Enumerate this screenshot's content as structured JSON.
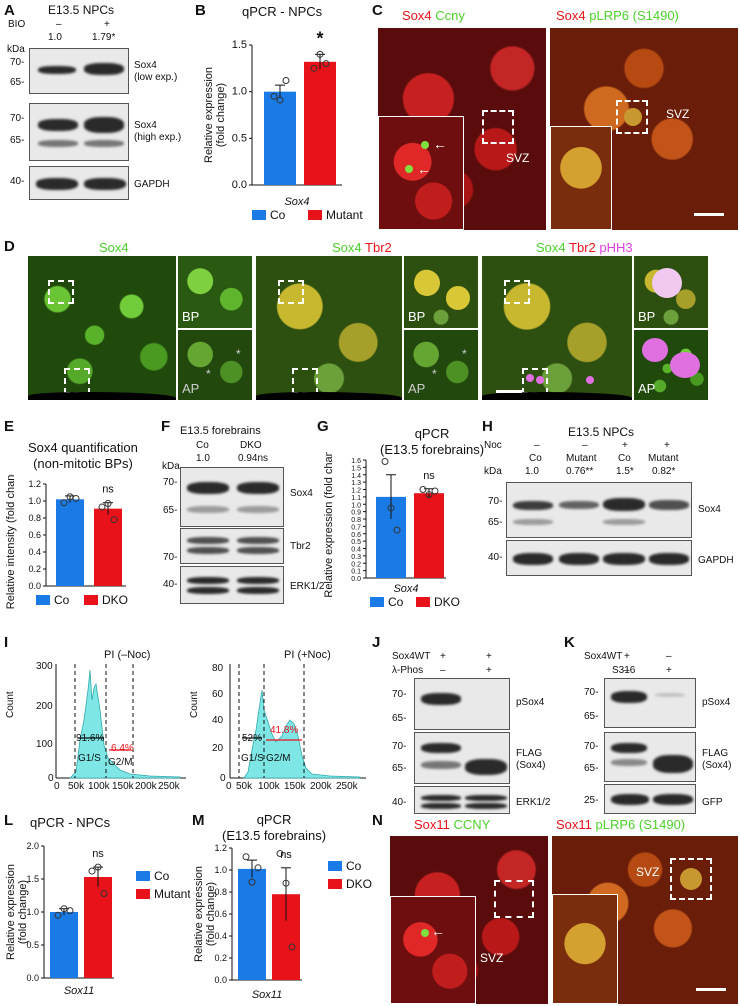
{
  "panel_letters": [
    "A",
    "B",
    "C",
    "D",
    "E",
    "F",
    "G",
    "H",
    "I",
    "J",
    "K",
    "L",
    "M",
    "N"
  ],
  "panelA": {
    "title": "E13.5 NPCs",
    "bio_label": "BIO",
    "bio_signs": [
      "–",
      "+"
    ],
    "ratios": [
      "1.0",
      "1.79*"
    ],
    "kda": "kDa",
    "markers1": [
      "70-",
      "65-"
    ],
    "markers2": [
      "70-",
      "65-"
    ],
    "marker3": "40-",
    "blot_labels": [
      "Sox4\n(low exp.)",
      "Sox4\n(high exp.)",
      "GAPDH"
    ]
  },
  "panelB": {
    "title": "qPCR - NPCs"
  },
  "panelC": {
    "left_title": [
      "Sox4",
      "Ccny"
    ],
    "right_title": [
      "Sox4",
      "pLRP6 (S1490)"
    ],
    "svz": "SVZ"
  },
  "panelD": {
    "titles": [
      [
        "Sox4"
      ],
      [
        "Sox4",
        "Tbr2"
      ],
      [
        "Sox4",
        "Tbr2",
        "pHH3"
      ]
    ],
    "bp": "BP",
    "ap": "AP",
    "star": "*"
  },
  "panelE": {
    "title": "Sox4 quantification\n(non-mitotic BPs)"
  },
  "panelF": {
    "title": "E13.5 forebrains",
    "groups": [
      "Co",
      "DKO"
    ],
    "ratios": [
      "1.0",
      "0.94ns"
    ],
    "kda": "kDa",
    "markers1": [
      "70-",
      "65-"
    ],
    "marker2": "70-",
    "marker3": "40-",
    "blot_labels": [
      "Sox4",
      "Tbr2",
      "ERK1/2"
    ]
  },
  "panelG": {
    "title": "qPCR\n(E13.5 forebrains)"
  },
  "panelH": {
    "title": "E13.5 NPCs",
    "noc": "Noc",
    "noc_signs": [
      "–",
      "–",
      "+",
      "+"
    ],
    "groups": [
      "Co",
      "Mutant",
      "Co",
      "Mutant"
    ],
    "ratios": [
      "1.0",
      "0.76**",
      "1.5*",
      "0.82*"
    ],
    "kda": "kDa",
    "markers1": [
      "70-",
      "65-"
    ],
    "marker2": "40-",
    "blot_labels": [
      "Sox4",
      "GAPDH"
    ]
  },
  "panelI": {
    "left_title": "PI (–Noc)",
    "right_title": "PI (+Noc)",
    "left_pcts": [
      "91.6%",
      "6.4%"
    ],
    "right_pcts": [
      "52%",
      "41.8%"
    ],
    "phases": [
      "G1/S",
      "G2/M"
    ],
    "xticks": [
      "0",
      "50k",
      "100k",
      "150k",
      "200k",
      "250k"
    ],
    "left_yticks": [
      "0",
      "100",
      "200",
      "300"
    ],
    "right_yticks": [
      "0",
      "20",
      "40",
      "60",
      "80"
    ],
    "ylabel": "Count"
  },
  "panelJ": {
    "rows": [
      "Sox4WT",
      "λ-Phos"
    ],
    "signs": [
      [
        "+",
        "+"
      ],
      [
        "–",
        "+"
      ]
    ],
    "markers1": [
      "70-",
      "65-"
    ],
    "markers2": [
      "70-",
      "65-"
    ],
    "marker3": "40-",
    "blot_labels": [
      "pSox4",
      "FLAG\n(Sox4)",
      "ERK1/2"
    ]
  },
  "panelK": {
    "rows": [
      "Sox4WT",
      "S316"
    ],
    "signs": [
      [
        "+",
        "–"
      ],
      [
        "–",
        "+"
      ]
    ],
    "markers1": [
      "70-",
      "65-"
    ],
    "markers2": [
      "70-",
      "65-"
    ],
    "marker3": "25-",
    "blot_labels": [
      "pSox4",
      "FLAG\n(Sox4)",
      "GFP"
    ]
  },
  "panelL": {
    "title": "qPCR - NPCs"
  },
  "panelM": {
    "title": "qPCR\n(E13.5 forebrains)"
  },
  "panelN": {
    "left_title": [
      "Sox11",
      "CCNY"
    ],
    "right_title": [
      "Sox11",
      "pLRP6 (S1490)"
    ],
    "svz": "SVZ"
  },
  "colors": {
    "blue": "#1a7be6",
    "red": "#e8131a",
    "sky": "#2ba6e8",
    "cyan": "#7fe6e6"
  },
  "chart_data": [
    {
      "id": "B",
      "type": "bar",
      "categories": [
        "Co",
        "Mutant"
      ],
      "values": [
        1.0,
        1.32
      ],
      "errors": [
        0.07,
        0.08
      ],
      "ylabel": "Relative expression\n(fold change)",
      "xlabel": "Sox4",
      "ylim": [
        0,
        1.5
      ],
      "yticks": [
        "0.0",
        "0.5",
        "1.0",
        "1.5"
      ],
      "annotations": [
        "*"
      ],
      "points": [
        [
          0.95,
          0.91,
          1.12
        ],
        [
          1.25,
          1.4,
          1.3
        ]
      ],
      "legend": [
        "Co",
        "Mutant"
      ]
    },
    {
      "id": "E",
      "type": "bar",
      "categories": [
        "Co",
        "DKO"
      ],
      "values": [
        1.02,
        0.91
      ],
      "errors": [
        0.04,
        0.07
      ],
      "ylabel": "Relative intensity (fold change)",
      "ylim": [
        0,
        1.2
      ],
      "yticks": [
        "0.0",
        "0.2",
        "0.4",
        "0.6",
        "0.8",
        "1.0",
        "1.2"
      ],
      "annotations": [
        "ns"
      ],
      "points": [
        [
          0.98,
          1.05,
          1.03
        ],
        [
          0.93,
          0.97,
          0.78
        ]
      ],
      "legend": [
        "Co",
        "DKO"
      ]
    },
    {
      "id": "G",
      "type": "bar",
      "categories": [
        "Co",
        "DKO"
      ],
      "values": [
        1.1,
        1.15
      ],
      "errors": [
        0.3,
        0.06
      ],
      "ylabel": "Relative expression (fold change)",
      "xlabel": "Sox4",
      "ylim": [
        0,
        1.6
      ],
      "yticks": [
        "0.0",
        "0.1",
        "0.2",
        "0.3",
        "0.4",
        "0.5",
        "0.6",
        "0.7",
        "0.8",
        "0.9",
        "1.0",
        "1.1",
        "1.2",
        "1.3",
        "1.4",
        "1.5",
        "1.6"
      ],
      "annotations": [
        "ns"
      ],
      "points": [
        [
          1.58,
          0.95,
          0.65
        ],
        [
          1.2,
          1.13,
          1.18
        ]
      ],
      "legend": [
        "Co",
        "DKO"
      ]
    },
    {
      "id": "L",
      "type": "bar",
      "categories": [
        "Co",
        "Mutant"
      ],
      "values": [
        1.0,
        1.53
      ],
      "errors": [
        0.05,
        0.15
      ],
      "ylabel": "Relative expression\n(fold change)",
      "xlabel": "Sox11",
      "ylim": [
        0,
        2.0
      ],
      "yticks": [
        "0.0",
        "0.5",
        "1.0",
        "1.5",
        "2.0"
      ],
      "annotations": [
        "ns"
      ],
      "points": [
        [
          0.95,
          1.05,
          1.02
        ],
        [
          1.62,
          1.68,
          1.28
        ]
      ],
      "legend": [
        "Co",
        "Mutant"
      ]
    },
    {
      "id": "M",
      "type": "bar",
      "categories": [
        "Co",
        "DKO"
      ],
      "values": [
        1.01,
        0.78
      ],
      "errors": [
        0.08,
        0.24
      ],
      "ylabel": "Relative expression\n(fold change)",
      "xlabel": "Sox11",
      "ylim": [
        0,
        1.2
      ],
      "yticks": [
        "0.0",
        "0.2",
        "0.4",
        "0.6",
        "0.8",
        "1.0",
        "1.2"
      ],
      "annotations": [
        "ns"
      ],
      "points": [
        [
          1.12,
          0.89,
          1.02
        ],
        [
          1.15,
          0.88,
          0.3
        ]
      ],
      "legend": [
        "Co",
        "DKO"
      ]
    }
  ]
}
